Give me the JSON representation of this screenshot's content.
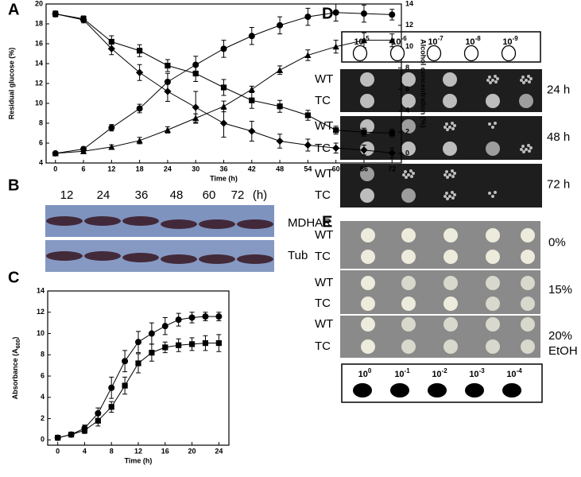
{
  "panel_labels": [
    "A",
    "B",
    "C",
    "D",
    "E"
  ],
  "chart_data": [
    {
      "type": "line",
      "x_label": "Time (h)",
      "y_label": "Residual glucose (%)",
      "y2_label": "Alcohol concentration (%)",
      "x": [
        0,
        6,
        12,
        18,
        24,
        30,
        36,
        42,
        48,
        54,
        60,
        66,
        72
      ],
      "xlim": [
        -2,
        74
      ],
      "xticks": [
        0,
        6,
        12,
        18,
        24,
        30,
        36,
        42,
        48,
        54,
        60,
        66,
        72
      ],
      "ylim": [
        4,
        20
      ],
      "yticks": [
        4,
        6,
        8,
        10,
        12,
        14,
        16,
        18,
        20
      ],
      "y2lim": [
        -0.9,
        14
      ],
      "y2ticks": [
        0,
        2,
        4,
        6,
        8,
        10,
        12,
        14
      ],
      "series": [
        {
          "marker": "square",
          "color": "#000000",
          "values": [
            19,
            18.5,
            16.2,
            15.3,
            13.8,
            13,
            11.6,
            10.3,
            9.7,
            8.8,
            7.3,
            7.1,
            7.0
          ],
          "errors": [
            0.3,
            0.3,
            0.6,
            0.6,
            0.6,
            0.8,
            0.8,
            0.8,
            0.6,
            0.5,
            0.4,
            0.4,
            0.4
          ]
        },
        {
          "marker": "diamond",
          "color": "#000000",
          "values": [
            19,
            18.4,
            15.5,
            13.1,
            11.2,
            9.6,
            8,
            7.2,
            6.2,
            5.8,
            5.5,
            5.3,
            5.0
          ],
          "errors": [
            0.2,
            0.3,
            0.6,
            0.8,
            1.0,
            1.6,
            1.4,
            1.0,
            0.7,
            0.6,
            0.5,
            0.5,
            0.5
          ]
        },
        {
          "marker": "circle",
          "color": "#000000",
          "axis": "y2",
          "values": [
            0,
            0.4,
            2.4,
            4.2,
            6.7,
            8.3,
            9.8,
            11,
            12,
            12.8,
            13.2,
            13.1,
            13
          ],
          "errors": [
            0.1,
            0.2,
            0.3,
            0.4,
            0.8,
            0.8,
            0.8,
            0.8,
            0.8,
            0.8,
            0.8,
            0.8,
            0.5
          ]
        },
        {
          "marker": "triangle",
          "color": "#000000",
          "axis": "y2",
          "values": [
            0,
            0.2,
            0.6,
            1.2,
            2.2,
            3.3,
            4.4,
            6,
            7.8,
            9.2,
            10,
            10.6,
            10.6
          ],
          "errors": [
            0.1,
            0.1,
            0.2,
            0.3,
            0.3,
            0.4,
            0.5,
            0.3,
            0.4,
            0.5,
            0.6,
            0.7,
            0.6
          ]
        }
      ]
    },
    {
      "type": "line",
      "x_label": "Time (h)",
      "y_label": [
        "Absorbance (A",
        "600",
        ")"
      ],
      "x": [
        0,
        2,
        4,
        6,
        8,
        10,
        12,
        14,
        16,
        18,
        20,
        22,
        24
      ],
      "xlim": [
        -1.5,
        25.5
      ],
      "xticks": [
        0,
        4,
        8,
        12,
        16,
        20,
        24
      ],
      "ylim": [
        -0.5,
        14
      ],
      "yticks": [
        0,
        2,
        4,
        6,
        8,
        10,
        12,
        14
      ],
      "series": [
        {
          "marker": "circle",
          "color": "#000000",
          "values": [
            0.2,
            0.5,
            1.1,
            2.5,
            4.9,
            7.4,
            9.2,
            10,
            10.7,
            11.3,
            11.5,
            11.6,
            11.6
          ],
          "errors": [
            0.1,
            0.1,
            0.3,
            0.5,
            1.0,
            1.0,
            1.0,
            1.0,
            0.8,
            0.6,
            0.5,
            0.4,
            0.4
          ]
        },
        {
          "marker": "square",
          "color": "#000000",
          "values": [
            0.2,
            0.5,
            0.9,
            1.8,
            3.1,
            5.1,
            7.2,
            8.2,
            8.7,
            8.9,
            9,
            9.1,
            9.1
          ],
          "errors": [
            0.1,
            0.1,
            0.3,
            0.5,
            0.5,
            0.8,
            0.9,
            0.8,
            0.5,
            0.6,
            0.6,
            0.7,
            0.8
          ]
        }
      ]
    }
  ],
  "blot": {
    "times": [
      "12",
      "24",
      "36",
      "48",
      "60",
      "72",
      "(h)"
    ],
    "bands": [
      "MDHAR",
      "Tub"
    ]
  },
  "spot_assay_D": {
    "dilutions": [
      {
        "base": "10",
        "exp": "-5"
      },
      {
        "base": "10",
        "exp": "-6"
      },
      {
        "base": "10",
        "exp": "-7"
      },
      {
        "base": "10",
        "exp": "-8"
      },
      {
        "base": "10",
        "exp": "-9"
      }
    ],
    "rows": [
      {
        "strains": [
          "WT",
          "TC"
        ],
        "label": "24 h"
      },
      {
        "strains": [
          "WT",
          "TC"
        ],
        "label": "48 h"
      },
      {
        "strains": [
          "WT",
          "TC"
        ],
        "label": "72 h"
      }
    ]
  },
  "spot_assay_E": {
    "rows": [
      {
        "strains": [
          "WT",
          "TC"
        ],
        "label": [
          "0%"
        ]
      },
      {
        "strains": [
          "WT",
          "TC"
        ],
        "label": [
          "15%"
        ]
      },
      {
        "strains": [
          "WT",
          "TC"
        ],
        "label": [
          "20%",
          "EtOH"
        ]
      }
    ],
    "dilutions": [
      {
        "base": "10",
        "exp": "0"
      },
      {
        "base": "10",
        "exp": "-1"
      },
      {
        "base": "10",
        "exp": "-2"
      },
      {
        "base": "10",
        "exp": "-3"
      },
      {
        "base": "10",
        "exp": "-4"
      }
    ]
  }
}
